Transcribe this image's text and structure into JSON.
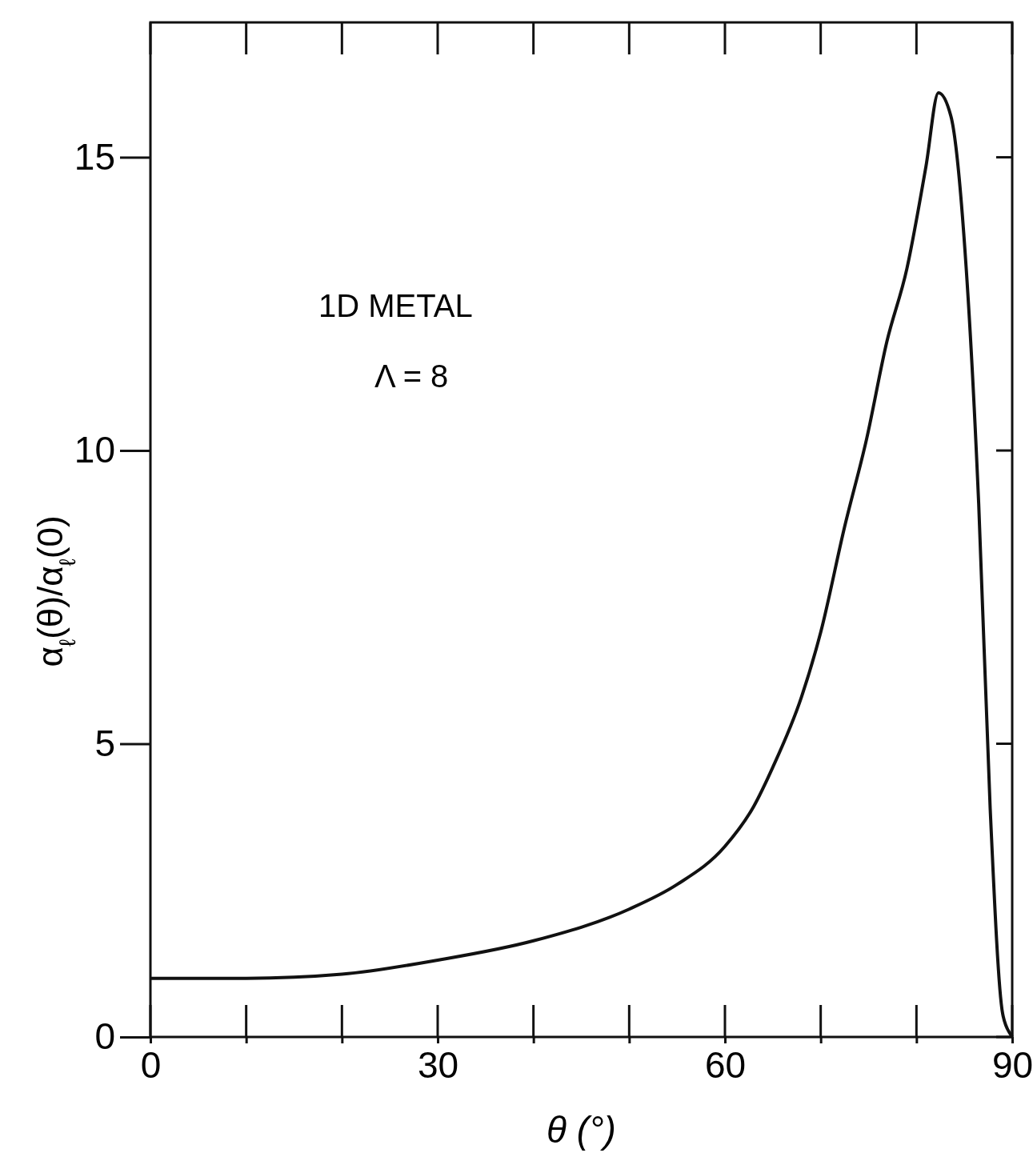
{
  "chart_data": {
    "type": "line",
    "xlabel": "θ (°)",
    "ylabel": "α$_{ℓ}$(θ)/α$_{ℓ}$(0)",
    "annotations": [
      "1D METAL",
      "Λ = 8"
    ],
    "xlim": [
      0,
      90
    ],
    "ylim": [
      0,
      17.3
    ],
    "xticks": [
      0,
      {
        "value": 10,
        "label": null
      },
      {
        "value": 20,
        "label": null
      },
      30,
      {
        "value": 40,
        "label": null
      },
      {
        "value": 50,
        "label": null
      },
      60,
      {
        "value": 70,
        "label": null
      },
      {
        "value": 80,
        "label": null
      },
      90
    ],
    "yticks": [
      0,
      5,
      10,
      15
    ],
    "grid": false,
    "marker": "none",
    "line_style": "solid",
    "series": [
      {
        "color": "#111111",
        "x": [
          0,
          10,
          20,
          30,
          40,
          50,
          55,
          60,
          63,
          65,
          68,
          70,
          72.5,
          74.8,
          76.9,
          79,
          81,
          82.3,
          83.6,
          85.2,
          86.5,
          87.7,
          89,
          89.8,
          90
        ],
        "values": [
          1.0,
          1.0,
          1.07,
          1.31,
          1.64,
          2.18,
          2.6,
          3.25,
          3.93,
          4.6,
          5.8,
          6.9,
          8.7,
          10.2,
          11.85,
          13.1,
          14.85,
          16.1,
          15.7,
          13.1,
          9.1,
          3.9,
          0.4,
          0.05,
          0
        ]
      }
    ]
  }
}
